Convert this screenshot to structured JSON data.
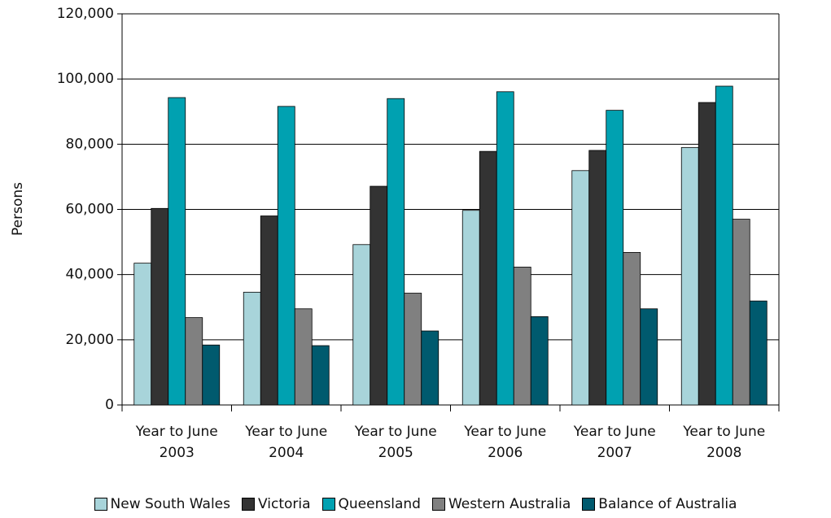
{
  "chart_data": {
    "type": "bar",
    "y_label": "Persons",
    "categories": [
      "Year to June 2003",
      "Year to June 2004",
      "Year to June 2005",
      "Year to June 2006",
      "Year to June 2007",
      "Year to June 2008"
    ],
    "series": [
      {
        "name": "New South Wales",
        "color": "#a8d4da",
        "values": [
          43500,
          34600,
          49200,
          59700,
          71900,
          79000
        ]
      },
      {
        "name": "Victoria",
        "color": "#333333",
        "values": [
          60300,
          58000,
          67100,
          77800,
          78100,
          92800
        ]
      },
      {
        "name": "Queensland",
        "color": "#00a1b1",
        "values": [
          94300,
          91600,
          94000,
          96100,
          90400,
          97800
        ]
      },
      {
        "name": "Western Australia",
        "color": "#808080",
        "values": [
          26800,
          29500,
          34300,
          42300,
          46800,
          57000
        ]
      },
      {
        "name": "Balance of Australia",
        "color": "#005a6e",
        "values": [
          18400,
          18200,
          22700,
          27100,
          29500,
          31900
        ]
      }
    ],
    "ylim": [
      0,
      120000
    ],
    "yticks": [
      0,
      {
        "value": 20000,
        "label": "20,000"
      },
      {
        "value": 40000,
        "label": "40,000"
      },
      {
        "value": 60000,
        "label": "60,000"
      },
      {
        "value": 80000,
        "label": "80,000"
      },
      {
        "value": 100000,
        "label": "100,000"
      },
      {
        "value": 120000,
        "label": "120,000"
      }
    ],
    "grid": true
  }
}
